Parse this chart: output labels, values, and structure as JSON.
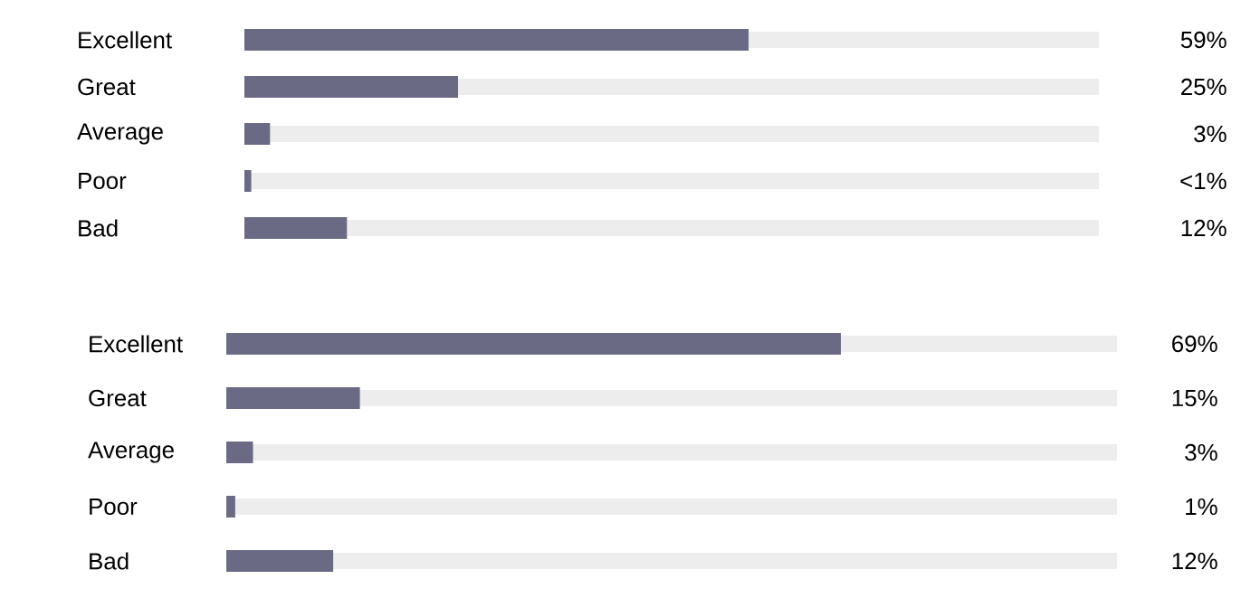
{
  "chart_data": [
    {
      "type": "bar",
      "orientation": "horizontal",
      "categories": [
        "Excellent",
        "Great",
        "Average",
        "Poor",
        "Bad"
      ],
      "values": [
        59,
        25,
        3,
        0.8,
        12
      ],
      "value_labels": [
        "59%",
        "25%",
        "3%",
        "<1%",
        "12%"
      ],
      "color": "#6b6a85",
      "xlim": [
        0,
        100
      ],
      "tick_labels": "y"
    },
    {
      "type": "bar",
      "orientation": "horizontal",
      "categories": [
        "Excellent",
        "Great",
        "Average",
        "Poor",
        "Bad"
      ],
      "values": [
        69,
        15,
        3,
        1,
        12
      ],
      "value_labels": [
        "69%",
        "15%",
        "3%",
        "1%",
        "12%"
      ],
      "color": "#6b6a85",
      "xlim": [
        0,
        100
      ],
      "tick_labels": "y"
    }
  ]
}
